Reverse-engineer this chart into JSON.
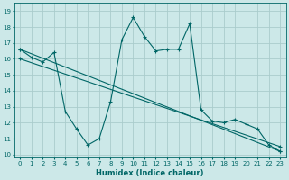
{
  "xlabel": "Humidex (Indice chaleur)",
  "ylabel": "",
  "bg_color": "#cce8e8",
  "grid_color": "#aacccc",
  "line_color": "#006666",
  "xlim": [
    -0.5,
    23.5
  ],
  "ylim": [
    9.8,
    19.5
  ],
  "xticks": [
    0,
    1,
    2,
    3,
    4,
    5,
    6,
    7,
    8,
    9,
    10,
    11,
    12,
    13,
    14,
    15,
    16,
    17,
    18,
    19,
    20,
    21,
    22,
    23
  ],
  "yticks": [
    10,
    11,
    12,
    13,
    14,
    15,
    16,
    17,
    18,
    19
  ],
  "line1_x": [
    0,
    1,
    2,
    3,
    4,
    5,
    6,
    7,
    8,
    9,
    10,
    11,
    12,
    13,
    14,
    15,
    16,
    17,
    18,
    19,
    20,
    21,
    22,
    23
  ],
  "line1_y": [
    16.6,
    16.1,
    15.8,
    16.4,
    12.7,
    11.6,
    10.6,
    11.0,
    13.3,
    17.2,
    18.6,
    17.4,
    16.5,
    16.6,
    16.6,
    18.2,
    12.8,
    12.1,
    12.0,
    12.2,
    11.9,
    11.6,
    10.6,
    10.2
  ],
  "line2_x": [
    0,
    23
  ],
  "line2_y": [
    16.6,
    10.2
  ],
  "line3_x": [
    0,
    23
  ],
  "line3_y": [
    16.0,
    10.5
  ]
}
